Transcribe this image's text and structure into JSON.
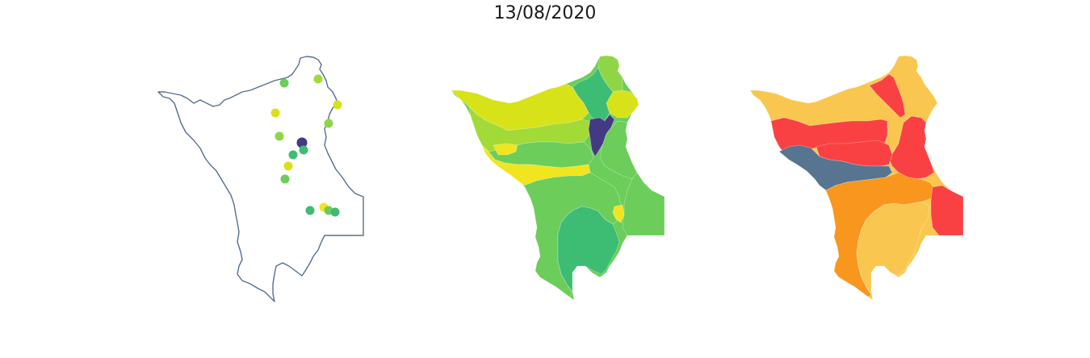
{
  "title": "13/08/2020",
  "colors": {
    "outline": "#566f8c",
    "viridis_purple": "#443983",
    "viridis_green_dark": "#3dbc74",
    "viridis_green": "#6ccd5a",
    "viridis_lime": "#a2da37",
    "viridis_yellow": "#d8e219",
    "viridis_yellow_bright": "#f0e51f",
    "risk_red": "#f94144",
    "risk_orange": "#f8961e",
    "risk_light_orange": "#f9c74f",
    "risk_slate": "#577590"
  },
  "maps": [
    {
      "kind": "point-stations",
      "icon": "region-outline"
    },
    {
      "kind": "choropleth-viridis",
      "icon": "region-fill"
    },
    {
      "kind": "choropleth-risk",
      "icon": "region-fill"
    }
  ]
}
